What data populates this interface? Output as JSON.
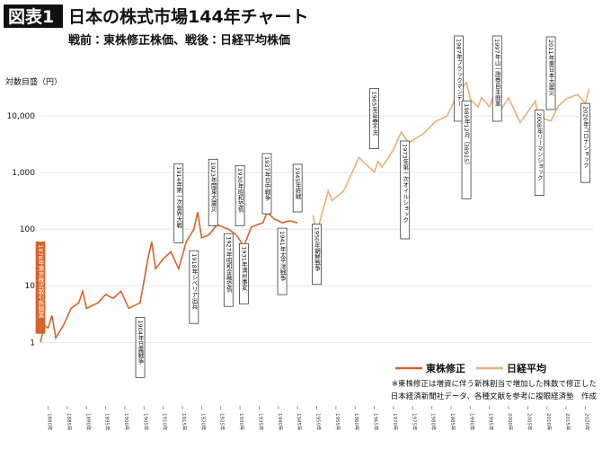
{
  "chart_data": {
    "type": "line",
    "badge": "図表1",
    "title": "日本の株式市場144年チャート",
    "subtitle": "戦前：東株修正株価、戦後：日経平均株価",
    "y_label": "対数目盛（円）",
    "log_y": true,
    "ylim": [
      0.35,
      180000
    ],
    "yticks": [
      1,
      10,
      100,
      {
        "value": 1000,
        "label": "1,000"
      },
      {
        "value": 10000,
        "label": "10,000"
      }
    ],
    "xlim": [
      1878,
      2022
    ],
    "xticks": [
      {
        "value": 1880,
        "label": "1880年"
      },
      {
        "value": 1885,
        "label": "1885年"
      },
      {
        "value": 1890,
        "label": "1890年"
      },
      {
        "value": 1895,
        "label": "1895年"
      },
      {
        "value": 1900,
        "label": "1900年"
      },
      {
        "value": 1905,
        "label": "1905年"
      },
      {
        "value": 1910,
        "label": "1910年"
      },
      {
        "value": 1915,
        "label": "1915年"
      },
      {
        "value": 1920,
        "label": "1920年"
      },
      {
        "value": 1925,
        "label": "1925年"
      },
      {
        "value": 1930,
        "label": "1930年"
      },
      {
        "value": 1935,
        "label": "1935年"
      },
      {
        "value": 1940,
        "label": "1940年"
      },
      {
        "value": 1945,
        "label": "1945年"
      },
      {
        "value": 1950,
        "label": "1950年"
      },
      {
        "value": 1955,
        "label": "1955年"
      },
      {
        "value": 1960,
        "label": "1960年"
      },
      {
        "value": 1965,
        "label": "1965年"
      },
      {
        "value": 1970,
        "label": "1970年"
      },
      {
        "value": 1975,
        "label": "1975年"
      },
      {
        "value": 1980,
        "label": "1980年"
      },
      {
        "value": 1985,
        "label": "1985年"
      },
      {
        "value": 1990,
        "label": "1990年"
      },
      {
        "value": 1995,
        "label": "1995年"
      },
      {
        "value": 2000,
        "label": "2000年"
      },
      {
        "value": 2005,
        "label": "2005年"
      },
      {
        "value": 2010,
        "label": "2010年"
      },
      {
        "value": 2015,
        "label": "2015年"
      },
      {
        "value": 2020,
        "label": "2020年"
      }
    ],
    "grid": true,
    "series": [
      {
        "name": "東株修正",
        "color": "#d9622b",
        "x": [
          1878,
          1879,
          1880,
          1881,
          1882,
          1884,
          1886,
          1888,
          1889,
          1890,
          1893,
          1895,
          1897,
          1899,
          1901,
          1904,
          1906,
          1907,
          1908,
          1910,
          1912,
          1914,
          1916,
          1918,
          1919,
          1920,
          1922,
          1924,
          1927,
          1929,
          1931,
          1933,
          1936,
          1937,
          1939,
          1941,
          1943,
          1945
        ],
        "values": [
          1,
          2,
          1.8,
          3,
          1.2,
          2,
          4,
          5,
          8,
          4,
          5,
          7,
          6,
          8,
          4,
          5,
          30,
          60,
          20,
          30,
          40,
          20,
          60,
          100,
          200,
          70,
          80,
          120,
          100,
          80,
          50,
          110,
          130,
          200,
          150,
          130,
          140,
          130
        ]
      },
      {
        "name": "日経平均",
        "color": "#e8b07a",
        "x": [
          1949,
          1950,
          1953,
          1954,
          1957,
          1961,
          1965,
          1966,
          1967,
          1970,
          1972,
          1974,
          1978,
          1981,
          1984,
          1987,
          1989,
          1990,
          1992,
          1993,
          1995,
          1996,
          1998,
          2000,
          2003,
          2007,
          2008,
          2009,
          2011,
          2013,
          2015,
          2018,
          2020,
          2021
        ],
        "values": [
          176,
          85,
          474,
          320,
          471,
          1829,
          1020,
          1588,
          1250,
          2534,
          5207,
          3355,
          5000,
          8019,
          10000,
          26646,
          38915,
          20221,
          14309,
          21148,
          14485,
          22455,
          12879,
          20833,
          7607,
          18261,
          7054,
          9000,
          8160,
          15000,
          20000,
          24000,
          16552,
          30467
        ]
      }
    ],
    "annotations": [
      {
        "x": 1878,
        "text": "1878年東京株式取引所開業"
      },
      {
        "x": 1904,
        "text": "1904年日露戦争"
      },
      {
        "x": 1914,
        "text": "1914年第一次世界大戦"
      },
      {
        "x": 1918,
        "text": "1918年シベリア出兵"
      },
      {
        "x": 1923,
        "text": "1923年関東大震災"
      },
      {
        "x": 1927,
        "text": "1927年昭和金融恐慌"
      },
      {
        "x": 1930,
        "text": "1930年昭和恐慌"
      },
      {
        "x": 1931,
        "text": "1931年満州事変"
      },
      {
        "x": 1937,
        "text": "1937年日中戦争"
      },
      {
        "x": 1941,
        "text": "1941年太平洋戦争"
      },
      {
        "x": 1945,
        "text": "1945年終戦"
      },
      {
        "x": 1950,
        "text": "1950年朝鮮戦争"
      },
      {
        "x": 1965,
        "text": "1965年証券不況"
      },
      {
        "x": 1973,
        "text": "1973年第一次オイルショック"
      },
      {
        "x": 1987,
        "text": "1987年ブラックマンデー"
      },
      {
        "x": 1989,
        "text": "1989年12月（38915）"
      },
      {
        "x": 1997,
        "text": "1997年山一證券自主廃業"
      },
      {
        "x": 2008,
        "text": "2008年リーマンショック"
      },
      {
        "x": 2011,
        "text": "2011年東日本大震災"
      },
      {
        "x": 2020,
        "text": "2020年コロナショック"
      }
    ],
    "notes": [
      "※東株修正は増資に伴う新株割当で増加した株数で修正した",
      "日本経済新聞社データ、各種文献を参考に複眼経済塾　作成"
    ]
  }
}
